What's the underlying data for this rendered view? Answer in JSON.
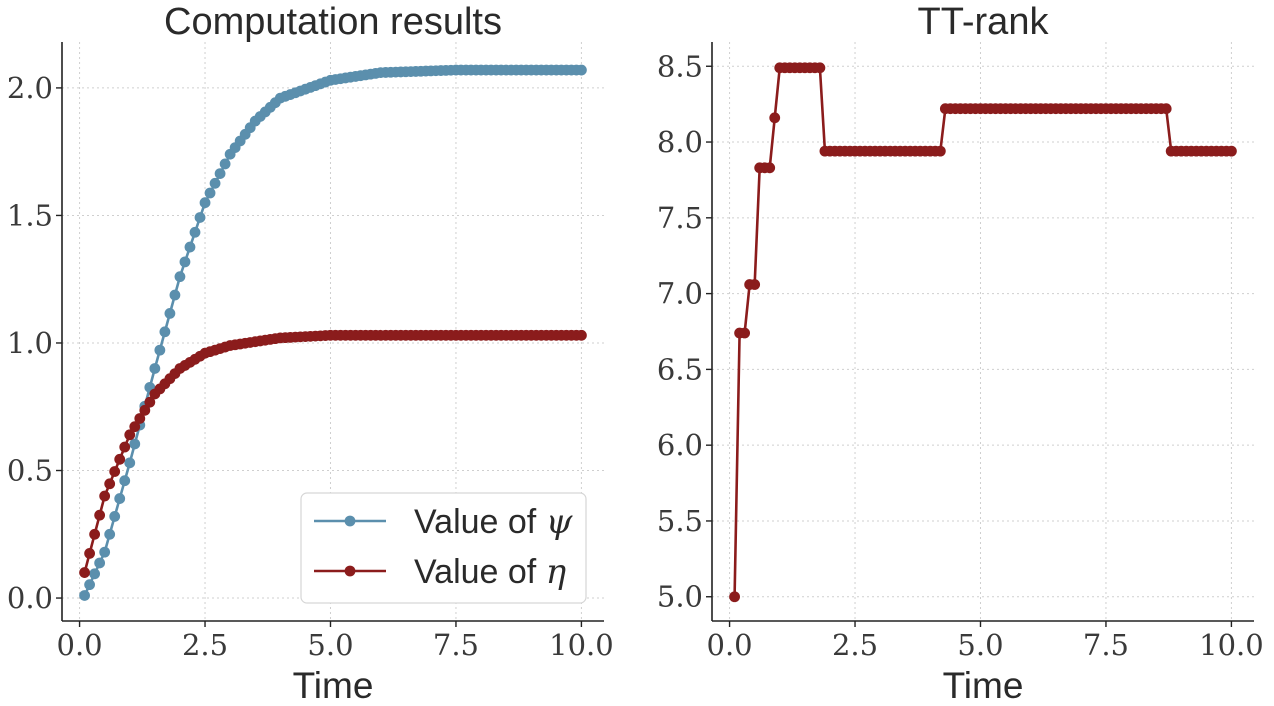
{
  "chart_data": [
    {
      "type": "line",
      "title": "Computation results",
      "xlabel": "Time",
      "ylabel": "",
      "xlim": [
        -0.35,
        10.45
      ],
      "ylim": [
        -0.09,
        2.18
      ],
      "xticks": [
        0.0,
        2.5,
        5.0,
        7.5,
        10.0
      ],
      "xtick_labels": [
        "0.0",
        "2.5",
        "5.0",
        "7.5",
        "10.0"
      ],
      "yticks": [
        0.0,
        0.5,
        1.0,
        1.5,
        2.0
      ],
      "ytick_labels": [
        "0.0",
        "0.5",
        "1.0",
        "1.5",
        "2.0"
      ],
      "grid": true,
      "legend_position": "bottom-right",
      "x_range": [
        0.1,
        10.0
      ],
      "x_step": 0.1,
      "series": [
        {
          "name": "Value of ψ",
          "legend_text": "Value of ",
          "legend_symbol": "ψ",
          "color": "#5b8fad",
          "sample_x": [
            0.1,
            0.5,
            1.0,
            1.5,
            2.0,
            2.5,
            3.0,
            3.5,
            4.0,
            5.0,
            6.0,
            7.5,
            10.0
          ],
          "sample_y": [
            0.01,
            0.18,
            0.53,
            0.9,
            1.26,
            1.55,
            1.74,
            1.87,
            1.96,
            2.03,
            2.06,
            2.07,
            2.07
          ]
        },
        {
          "name": "Value of η",
          "legend_text": "Value of ",
          "legend_symbol": "η",
          "color": "#8b1c1c",
          "sample_x": [
            0.1,
            0.5,
            1.0,
            1.5,
            2.0,
            2.5,
            3.0,
            4.0,
            5.0,
            6.0,
            10.0
          ],
          "sample_y": [
            0.1,
            0.4,
            0.64,
            0.8,
            0.9,
            0.96,
            0.99,
            1.02,
            1.03,
            1.03,
            1.03
          ]
        }
      ]
    },
    {
      "type": "line",
      "title": "TT-rank",
      "xlabel": "Time",
      "ylabel": "",
      "xlim": [
        -0.35,
        10.45
      ],
      "ylim": [
        4.84,
        8.66
      ],
      "xticks": [
        0.0,
        2.5,
        5.0,
        7.5,
        10.0
      ],
      "xtick_labels": [
        "0.0",
        "2.5",
        "5.0",
        "7.5",
        "10.0"
      ],
      "yticks": [
        5.0,
        5.5,
        6.0,
        6.5,
        7.0,
        7.5,
        8.0,
        8.5
      ],
      "ytick_labels": [
        "5.0",
        "5.5",
        "6.0",
        "6.5",
        "7.0",
        "7.5",
        "8.0",
        "8.5"
      ],
      "grid": true,
      "series": [
        {
          "color": "#8b1c1c",
          "x": [
            0.1,
            0.2,
            0.3,
            0.4,
            0.5,
            0.6,
            0.7,
            0.8,
            0.9,
            1.0,
            1.1,
            1.2,
            1.3,
            1.4,
            1.5,
            1.6,
            1.7,
            1.8,
            1.9,
            2.0,
            2.1,
            2.2,
            2.3,
            2.4,
            2.5,
            2.6,
            2.7,
            2.8,
            2.9,
            3.0,
            3.1,
            3.2,
            3.3,
            3.4,
            3.5,
            3.6,
            3.7,
            3.8,
            3.9,
            4.0,
            4.1,
            4.2,
            4.3,
            4.4,
            4.5,
            4.6,
            4.7,
            4.8,
            4.9,
            5.0,
            5.1,
            5.2,
            5.3,
            5.4,
            5.5,
            5.6,
            5.7,
            5.8,
            5.9,
            6.0,
            6.1,
            6.2,
            6.3,
            6.4,
            6.5,
            6.6,
            6.7,
            6.8,
            6.9,
            7.0,
            7.1,
            7.2,
            7.3,
            7.4,
            7.5,
            7.6,
            7.7,
            7.8,
            7.9,
            8.0,
            8.1,
            8.2,
            8.3,
            8.4,
            8.5,
            8.6,
            8.7,
            8.8,
            8.9,
            9.0,
            9.1,
            9.2,
            9.3,
            9.4,
            9.5,
            9.6,
            9.7,
            9.8,
            9.9,
            10.0
          ],
          "y": [
            5.0,
            6.74,
            6.74,
            7.06,
            7.06,
            7.83,
            7.83,
            7.83,
            8.16,
            8.49,
            8.49,
            8.49,
            8.49,
            8.49,
            8.49,
            8.49,
            8.49,
            8.49,
            7.94,
            7.94,
            7.94,
            7.94,
            7.94,
            7.94,
            7.94,
            7.94,
            7.94,
            7.94,
            7.94,
            7.94,
            7.94,
            7.94,
            7.94,
            7.94,
            7.94,
            7.94,
            7.94,
            7.94,
            7.94,
            7.94,
            7.94,
            7.94,
            8.22,
            8.22,
            8.22,
            8.22,
            8.22,
            8.22,
            8.22,
            8.22,
            8.22,
            8.22,
            8.22,
            8.22,
            8.22,
            8.22,
            8.22,
            8.22,
            8.22,
            8.22,
            8.22,
            8.22,
            8.22,
            8.22,
            8.22,
            8.22,
            8.22,
            8.22,
            8.22,
            8.22,
            8.22,
            8.22,
            8.22,
            8.22,
            8.22,
            8.22,
            8.22,
            8.22,
            8.22,
            8.22,
            8.22,
            8.22,
            8.22,
            8.22,
            8.22,
            8.22,
            8.22,
            7.94,
            7.94,
            7.94,
            7.94,
            7.94,
            7.94,
            7.94,
            7.94,
            7.94,
            7.94,
            7.94,
            7.94,
            7.94
          ]
        }
      ]
    }
  ]
}
